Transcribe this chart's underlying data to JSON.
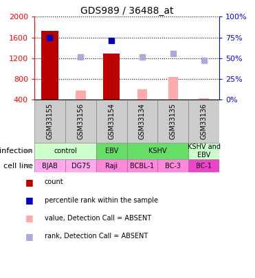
{
  "title": "GDS989 / 36488_at",
  "samples": [
    "GSM33155",
    "GSM33156",
    "GSM33154",
    "GSM33134",
    "GSM33135",
    "GSM33136"
  ],
  "ylim_left": [
    400,
    2000
  ],
  "yticks_left": [
    400,
    800,
    1200,
    1600,
    2000
  ],
  "ytick_labels_left": [
    "400",
    "800",
    "1200",
    "1600",
    "2000"
  ],
  "yticks_right": [
    0,
    25,
    50,
    75,
    100
  ],
  "ytick_labels_right": [
    "0%",
    "25%",
    "50%",
    "75%",
    "100%"
  ],
  "count_bars": [
    1730,
    null,
    1290,
    null,
    null,
    null
  ],
  "count_color": "#bb0000",
  "absent_value_bars": [
    null,
    580,
    null,
    610,
    840,
    435
  ],
  "absent_value_color": "#ffaaaa",
  "percentile_ranks": [
    1590,
    null,
    1540,
    null,
    null,
    null
  ],
  "percentile_color": "#0000bb",
  "absent_ranks": [
    null,
    1225,
    null,
    1230,
    1285,
    1165
  ],
  "absent_rank_color": "#aaaadd",
  "infection_groups": [
    {
      "label": "control",
      "cols": [
        0,
        1
      ],
      "color": "#ccffcc"
    },
    {
      "label": "EBV",
      "cols": [
        2,
        2
      ],
      "color": "#66dd66"
    },
    {
      "label": "KSHV",
      "cols": [
        3,
        4
      ],
      "color": "#66dd66"
    },
    {
      "label": "KSHV and\nEBV",
      "cols": [
        5,
        5
      ],
      "color": "#ccffcc"
    }
  ],
  "cell_line_labels": [
    "BJAB",
    "DG75",
    "Raji",
    "BCBL-1",
    "BC-3",
    "BC-1"
  ],
  "cell_line_colors": [
    "#ffaaee",
    "#ffaaee",
    "#ff88dd",
    "#ff88dd",
    "#ff88dd",
    "#ee44cc"
  ],
  "sample_box_color": "#cccccc",
  "legend_items": [
    {
      "color": "#bb0000",
      "label": "count"
    },
    {
      "color": "#0000bb",
      "label": "percentile rank within the sample"
    },
    {
      "color": "#ffaaaa",
      "label": "value, Detection Call = ABSENT"
    },
    {
      "color": "#aaaadd",
      "label": "rank, Detection Call = ABSENT"
    }
  ]
}
